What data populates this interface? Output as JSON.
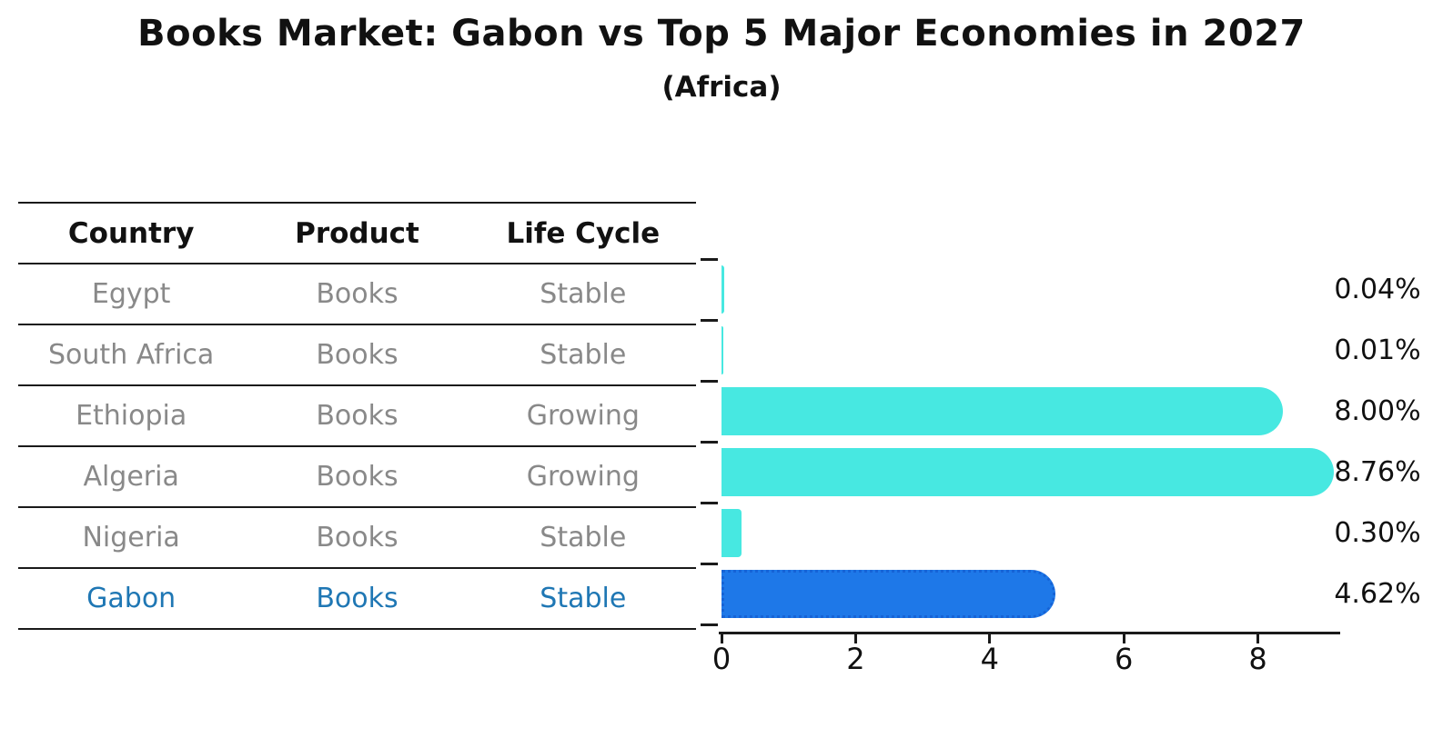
{
  "header": {
    "title": "Books Market: Gabon vs Top 5 Major Economies in 2027",
    "subtitle": "(Africa)"
  },
  "table": {
    "headers": [
      "Country",
      "Product",
      "Life Cycle"
    ],
    "rows": [
      {
        "country": "Egypt",
        "product": "Books",
        "life_cycle": "Stable",
        "highlight": false
      },
      {
        "country": "South Africa",
        "product": "Books",
        "life_cycle": "Stable",
        "highlight": false
      },
      {
        "country": "Ethiopia",
        "product": "Books",
        "life_cycle": "Growing",
        "highlight": false
      },
      {
        "country": "Algeria",
        "product": "Books",
        "life_cycle": "Growing",
        "highlight": false
      },
      {
        "country": "Nigeria",
        "product": "Books",
        "life_cycle": "Stable",
        "highlight": false
      },
      {
        "country": "Gabon",
        "product": "Books",
        "life_cycle": "Stable",
        "highlight": true
      }
    ]
  },
  "chart_data": {
    "type": "bar",
    "orientation": "horizontal",
    "title": "Books Market: Gabon vs Top 5 Major Economies in 2027",
    "subtitle": "(Africa)",
    "categories": [
      "Egypt",
      "South Africa",
      "Ethiopia",
      "Algeria",
      "Nigeria",
      "Gabon"
    ],
    "values": [
      0.04,
      0.01,
      8.0,
      8.76,
      0.3,
      4.62
    ],
    "value_labels": [
      "0.04%",
      "0.01%",
      "8.00%",
      "8.76%",
      "0.30%",
      "4.62%"
    ],
    "highlight_index": 5,
    "x_ticks": [
      0,
      2,
      4,
      6,
      8
    ],
    "xlim": [
      0,
      9.2
    ],
    "grid": false,
    "legend": "none",
    "colors": {
      "bar": "#47e8e1",
      "highlight_bar": "#1e78e8",
      "highlight_edge": "#1663d6",
      "highlight_text": "#1f77b4",
      "row_text": "#898989",
      "axis": "#1a1a1a"
    }
  }
}
